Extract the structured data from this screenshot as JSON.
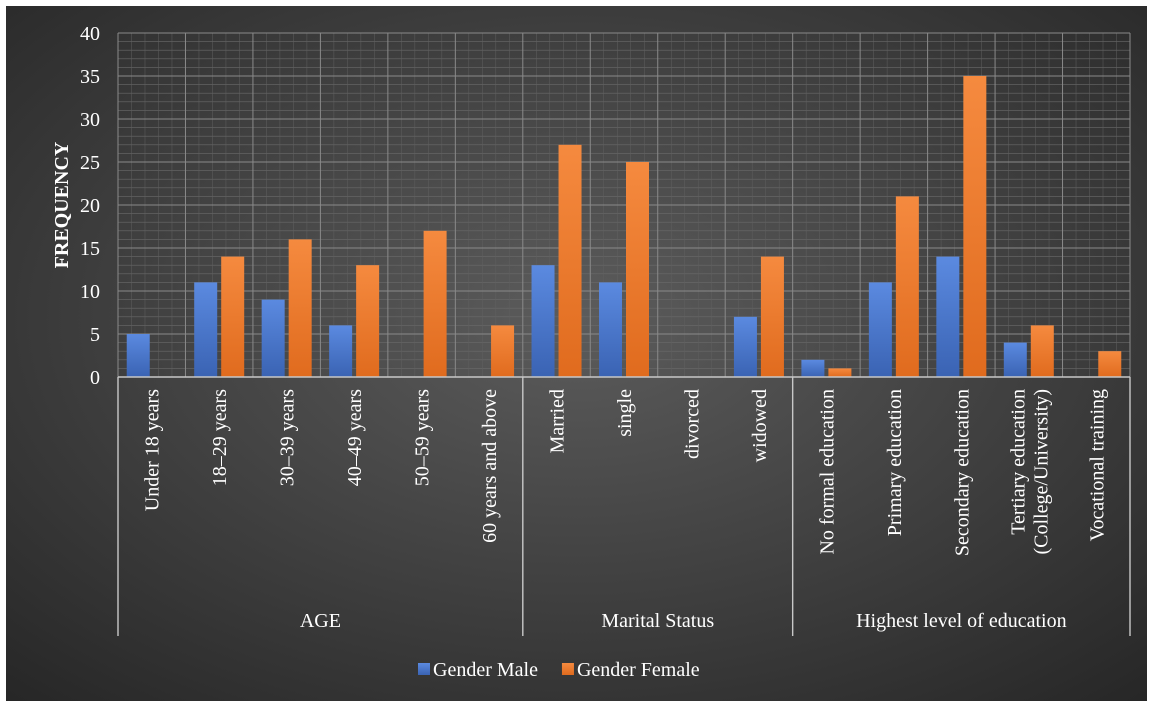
{
  "chart_data": {
    "type": "bar",
    "title": "",
    "ylabel": "FREQUENCY",
    "xlabel": "",
    "ylim": [
      0,
      40
    ],
    "yticks": [
      "0",
      "5",
      "10",
      "15",
      "20",
      "25",
      "30",
      "35",
      "40"
    ],
    "grid": true,
    "legend_position": "bottom",
    "groups": [
      {
        "label": "AGE",
        "categories": [
          "Under 18 years",
          "18–29 years",
          "30–39 years",
          "40–49 years",
          "50–59 years",
          "60 years and above"
        ]
      },
      {
        "label": "Marital Status",
        "categories": [
          "Married",
          "single",
          "divorced",
          "widowed"
        ]
      },
      {
        "label": "Highest level of education",
        "categories": [
          "No formal education",
          "Primary education",
          "Secondary education",
          "Tertiary education (College/University)",
          "Vocational training"
        ]
      }
    ],
    "categories": [
      [
        "Under 18 years"
      ],
      [
        "18–29 years"
      ],
      [
        "30–39 years"
      ],
      [
        "40–49 years"
      ],
      [
        "50–59 years"
      ],
      [
        "60 years and above"
      ],
      [
        "Married"
      ],
      [
        "single"
      ],
      [
        "divorced"
      ],
      [
        "widowed"
      ],
      [
        "No formal education"
      ],
      [
        "Primary education"
      ],
      [
        "Secondary education"
      ],
      [
        "Tertiary education",
        "(College/University)"
      ],
      [
        "Vocational training"
      ]
    ],
    "series": [
      {
        "name": "Gender Male",
        "color": "#4472c4",
        "values": [
          5,
          11,
          9,
          6,
          0,
          0,
          13,
          11,
          0,
          7,
          2,
          11,
          14,
          4,
          0
        ]
      },
      {
        "name": "Gender Female",
        "color": "#ed7d31",
        "values": [
          0,
          14,
          16,
          13,
          17,
          6,
          27,
          25,
          0,
          14,
          1,
          21,
          35,
          6,
          3
        ]
      }
    ]
  }
}
